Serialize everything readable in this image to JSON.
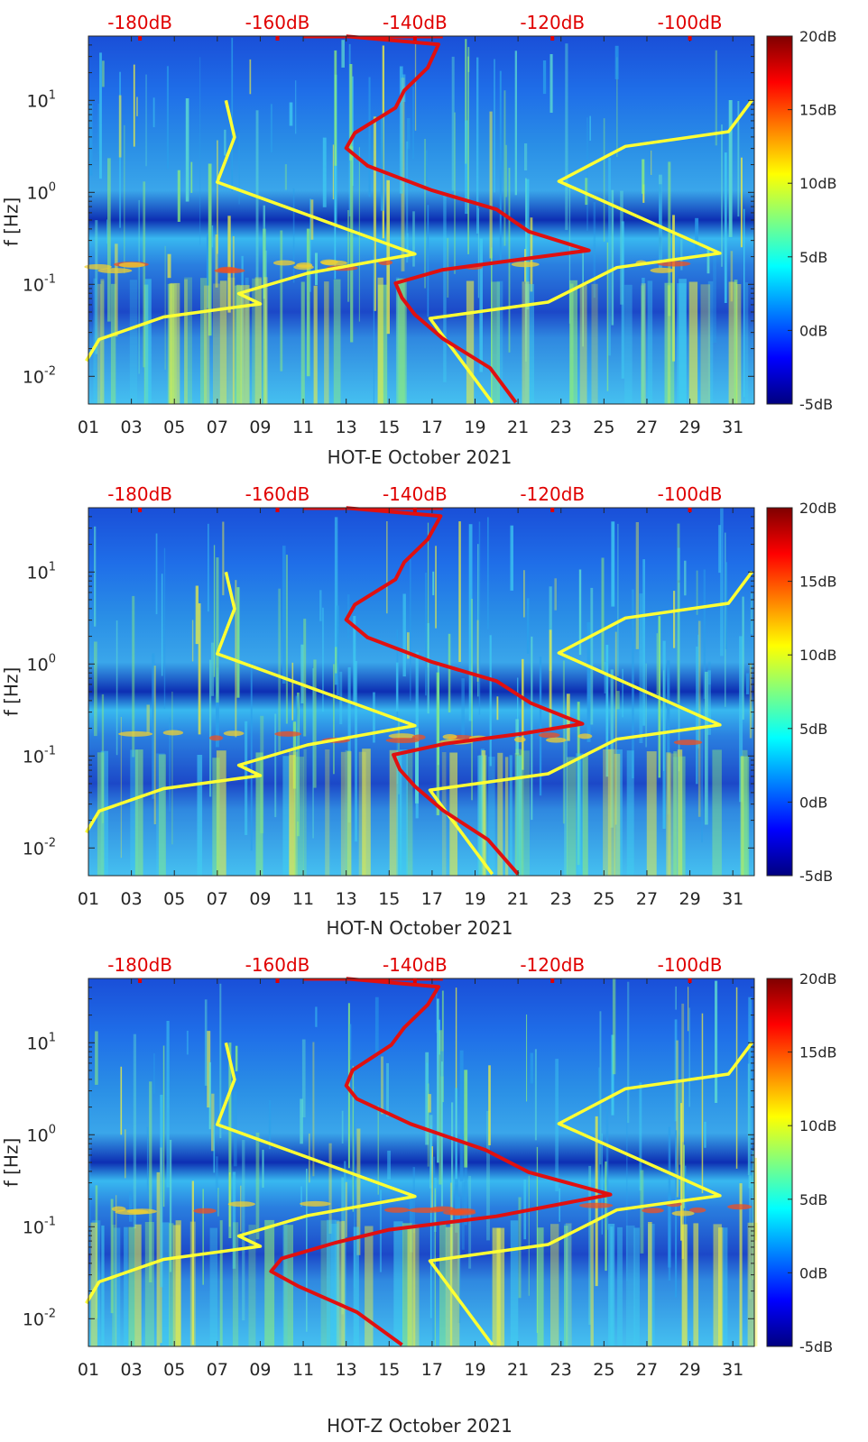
{
  "chart_data": [
    {
      "type": "heatmap",
      "title": "HOT-E October 2021",
      "xlabel": "HOT-E October 2021",
      "ylabel": "f [Hz]",
      "x_ticks": [
        "01",
        "03",
        "05",
        "07",
        "09",
        "11",
        "13",
        "15",
        "17",
        "19",
        "21",
        "23",
        "25",
        "27",
        "29",
        "31"
      ],
      "y_ticks": [
        "10^-2",
        "10^-1",
        "10^0",
        "10^1"
      ],
      "ylim_hz": [
        0.005,
        50
      ],
      "xlim_days": [
        1,
        32
      ],
      "colorbar": {
        "labels": [
          "20dB",
          "15dB",
          "10dB",
          "5dB",
          "0dB",
          "-5dB"
        ],
        "range_db": [
          -5,
          20
        ]
      },
      "top_axis": {
        "labels": [
          "-180dB",
          "-160dB",
          "-140dB",
          "-120dB",
          "-100dB"
        ]
      },
      "series": [
        {
          "name": "yellow-low-noise-model",
          "color": "#ffff33",
          "points": [
            [
              0.9,
              0.0147
            ],
            [
              1.5,
              0.0252
            ],
            [
              4.5,
              0.0442
            ],
            [
              9,
              0.0613
            ],
            [
              8,
              0.0794
            ],
            [
              11.2,
              0.132
            ],
            [
              16.2,
              0.214
            ],
            [
              7,
              1.29
            ],
            [
              7.8,
              3.98
            ],
            [
              7.4,
              10
            ]
          ]
        },
        {
          "name": "yellow-high-noise-model",
          "color": "#ffff33",
          "points": [
            [
              19.8,
              0.0052
            ],
            [
              16.9,
              0.0426
            ],
            [
              22.4,
              0.0641
            ],
            [
              25.6,
              0.152
            ],
            [
              30.4,
              0.218
            ],
            [
              22.9,
              1.32
            ],
            [
              26,
              3.16
            ],
            [
              30.8,
              4.57
            ],
            [
              31.9,
              10.1
            ]
          ]
        },
        {
          "name": "red-psd-curve",
          "color": "#e01010",
          "points": [
            [
              20.9,
              0.0052
            ],
            [
              19.7,
              0.0123
            ],
            [
              17.5,
              0.0257
            ],
            [
              16.2,
              0.0467
            ],
            [
              15.6,
              0.0711
            ],
            [
              15.3,
              0.103
            ],
            [
              17.5,
              0.144
            ],
            [
              21,
              0.185
            ],
            [
              24.3,
              0.234
            ],
            [
              21.5,
              0.375
            ],
            [
              20,
              0.653
            ],
            [
              17,
              1.05
            ],
            [
              14,
              1.94
            ],
            [
              13,
              3.03
            ],
            [
              13.4,
              4.42
            ],
            [
              15.3,
              8.32
            ],
            [
              15.7,
              12.8
            ],
            [
              16.8,
              22.7
            ],
            [
              17.3,
              40.6
            ],
            [
              13,
              49.7
            ]
          ]
        }
      ]
    },
    {
      "type": "heatmap",
      "title": "HOT-N October 2021",
      "xlabel": "HOT-N October 2021",
      "ylabel": "f [Hz]",
      "x_ticks": [
        "01",
        "03",
        "05",
        "07",
        "09",
        "11",
        "13",
        "15",
        "17",
        "19",
        "21",
        "23",
        "25",
        "27",
        "29",
        "31"
      ],
      "y_ticks": [
        "10^-2",
        "10^-1",
        "10^0",
        "10^1"
      ],
      "ylim_hz": [
        0.005,
        50
      ],
      "xlim_days": [
        1,
        32
      ],
      "colorbar": {
        "labels": [
          "20dB",
          "15dB",
          "10dB",
          "5dB",
          "0dB",
          "-5dB"
        ],
        "range_db": [
          -5,
          20
        ]
      },
      "top_axis": {
        "labels": [
          "-180dB",
          "-160dB",
          "-140dB",
          "-120dB",
          "-100dB"
        ]
      },
      "series": [
        {
          "name": "yellow-low-noise-model",
          "color": "#ffff33",
          "points": [
            [
              0.9,
              0.0147
            ],
            [
              1.5,
              0.0252
            ],
            [
              4.5,
              0.0442
            ],
            [
              9,
              0.0613
            ],
            [
              8,
              0.0794
            ],
            [
              11.2,
              0.132
            ],
            [
              16.2,
              0.214
            ],
            [
              7,
              1.29
            ],
            [
              7.8,
              3.98
            ],
            [
              7.4,
              10
            ]
          ]
        },
        {
          "name": "yellow-high-noise-model",
          "color": "#ffff33",
          "points": [
            [
              19.8,
              0.0052
            ],
            [
              16.9,
              0.0426
            ],
            [
              22.4,
              0.0641
            ],
            [
              25.6,
              0.152
            ],
            [
              30.4,
              0.218
            ],
            [
              22.9,
              1.32
            ],
            [
              26,
              3.16
            ],
            [
              30.8,
              4.57
            ],
            [
              31.9,
              10.1
            ]
          ]
        },
        {
          "name": "red-psd-curve",
          "color": "#e01010",
          "points": [
            [
              21,
              0.0052
            ],
            [
              19.6,
              0.0123
            ],
            [
              17.5,
              0.0257
            ],
            [
              16.2,
              0.0467
            ],
            [
              15.5,
              0.0711
            ],
            [
              15.2,
              0.103
            ],
            [
              17.6,
              0.136
            ],
            [
              21.2,
              0.175
            ],
            [
              24,
              0.224
            ],
            [
              21.6,
              0.375
            ],
            [
              20,
              0.653
            ],
            [
              17,
              1.05
            ],
            [
              14,
              1.94
            ],
            [
              13,
              3.03
            ],
            [
              13.4,
              4.42
            ],
            [
              15.3,
              8.32
            ],
            [
              15.7,
              12.8
            ],
            [
              16.8,
              22.7
            ],
            [
              17.4,
              40.6
            ],
            [
              13,
              49.7
            ]
          ]
        }
      ]
    },
    {
      "type": "heatmap",
      "title": "HOT-Z October 2021",
      "xlabel": "HOT-Z October 2021",
      "ylabel": "f [Hz]",
      "x_ticks": [
        "01",
        "03",
        "05",
        "07",
        "09",
        "11",
        "13",
        "15",
        "17",
        "19",
        "21",
        "23",
        "25",
        "27",
        "29",
        "31"
      ],
      "y_ticks": [
        "10^-2",
        "10^-1",
        "10^0",
        "10^1"
      ],
      "ylim_hz": [
        0.005,
        50
      ],
      "xlim_days": [
        1,
        32
      ],
      "colorbar": {
        "labels": [
          "20dB",
          "15dB",
          "10dB",
          "5dB",
          "0dB",
          "-5dB"
        ],
        "range_db": [
          -5,
          20
        ]
      },
      "top_axis": {
        "labels": [
          "-180dB",
          "-160dB",
          "-140dB",
          "-120dB",
          "-100dB"
        ]
      },
      "series": [
        {
          "name": "yellow-low-noise-model",
          "color": "#ffff33",
          "points": [
            [
              0.9,
              0.0147
            ],
            [
              1.5,
              0.0252
            ],
            [
              4.5,
              0.0442
            ],
            [
              9,
              0.0613
            ],
            [
              8,
              0.0794
            ],
            [
              11.2,
              0.132
            ],
            [
              16.2,
              0.214
            ],
            [
              7,
              1.29
            ],
            [
              7.8,
              3.98
            ],
            [
              7.4,
              10
            ]
          ]
        },
        {
          "name": "yellow-high-noise-model",
          "color": "#ffff33",
          "points": [
            [
              19.8,
              0.0052
            ],
            [
              16.9,
              0.0426
            ],
            [
              22.4,
              0.0641
            ],
            [
              25.6,
              0.152
            ],
            [
              30.4,
              0.218
            ],
            [
              22.9,
              1.32
            ],
            [
              26,
              3.16
            ],
            [
              30.8,
              4.57
            ],
            [
              31.9,
              10.1
            ]
          ]
        },
        {
          "name": "red-psd-curve",
          "color": "#e01010",
          "points": [
            [
              15.6,
              0.0052
            ],
            [
              13.5,
              0.0118
            ],
            [
              10.8,
              0.0224
            ],
            [
              9.5,
              0.0327
            ],
            [
              10,
              0.0453
            ],
            [
              12.5,
              0.067
            ],
            [
              15,
              0.0928
            ],
            [
              20,
              0.13
            ],
            [
              25.3,
              0.224
            ],
            [
              21.5,
              0.392
            ],
            [
              19.5,
              0.681
            ],
            [
              16,
              1.31
            ],
            [
              13.5,
              2.45
            ],
            [
              13,
              3.42
            ],
            [
              13.3,
              5.03
            ],
            [
              15.1,
              9.48
            ],
            [
              15.7,
              14.6
            ],
            [
              16.8,
              25.9
            ],
            [
              17.3,
              40.6
            ],
            [
              13,
              49.7
            ]
          ]
        }
      ]
    }
  ]
}
